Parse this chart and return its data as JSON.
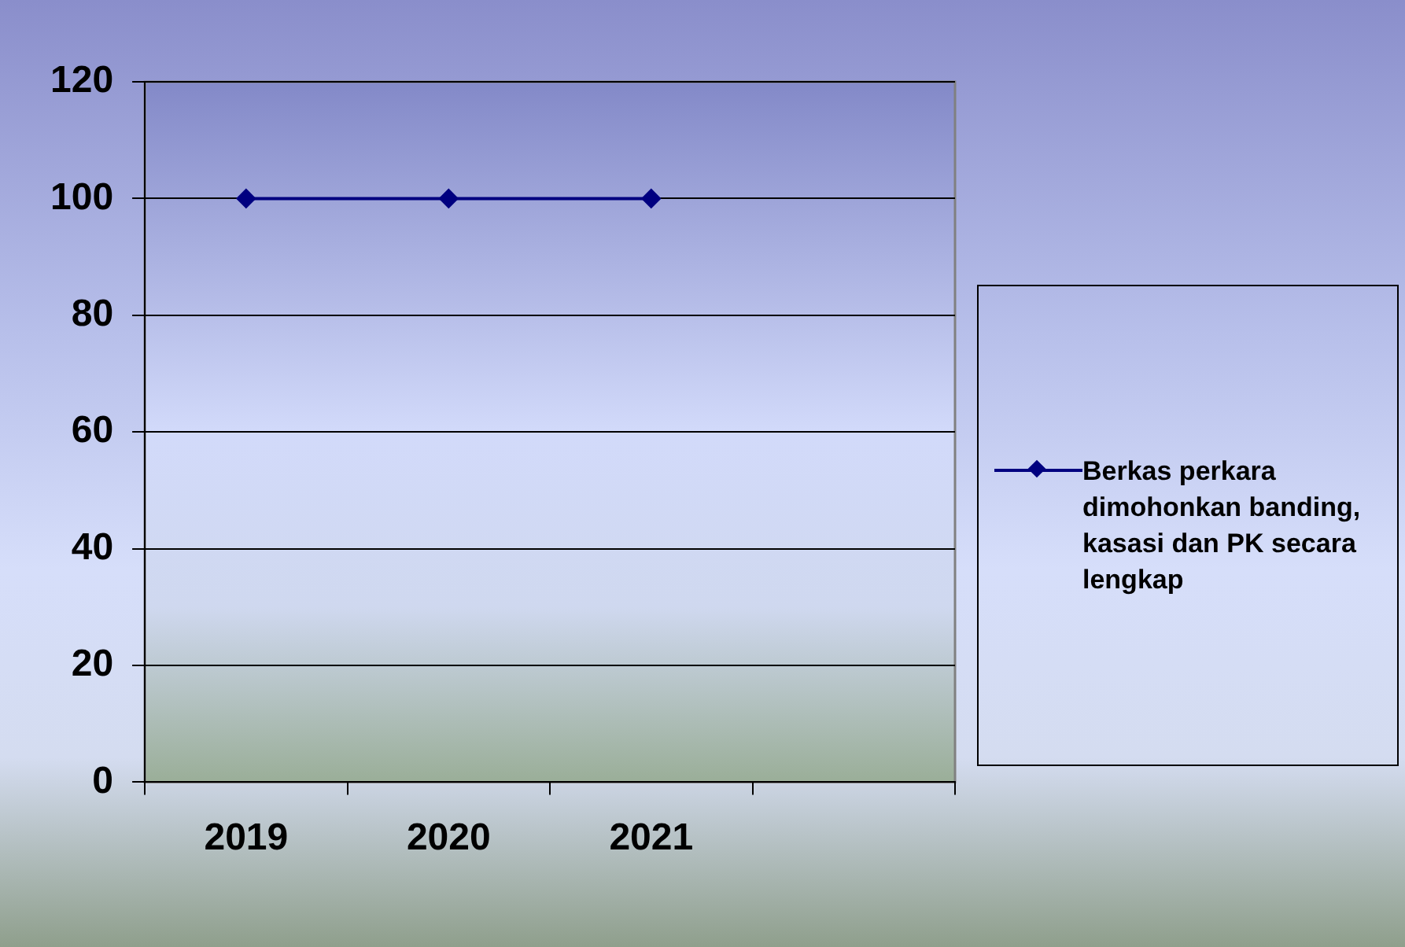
{
  "chart_data": {
    "type": "line",
    "categories": [
      "2019",
      "2020",
      "2021",
      null
    ],
    "series": [
      {
        "name": "Berkas perkara dimohonkan banding, kasasi dan PK secara lengkap",
        "color": "#000080",
        "values": [
          100,
          100,
          100,
          null
        ]
      }
    ],
    "ylim": [
      0,
      120
    ],
    "yticks": [
      0,
      20,
      40,
      60,
      80,
      100,
      120
    ],
    "grid": "y",
    "legend": "right",
    "marker": "diamond",
    "line_style": "solid"
  }
}
